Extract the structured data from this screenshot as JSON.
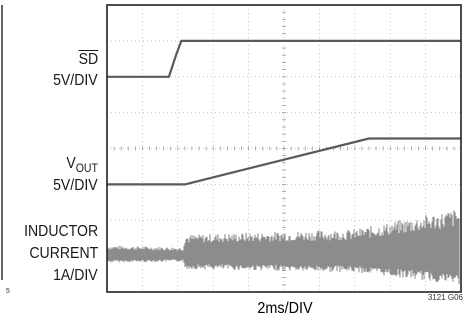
{
  "chart_data": {
    "type": "line",
    "title": "",
    "xlabel": "2ms/DIV",
    "figure_id": "3121 G06",
    "x_unit": "ms",
    "x_divisions": 10,
    "xlim": [
      0,
      20
    ],
    "y_divisions": 8,
    "grid": true,
    "series": [
      {
        "name": "SD",
        "overline": true,
        "scale": "5V/DIV",
        "points": [
          [
            0,
            0
          ],
          [
            3.5,
            0
          ],
          [
            3.9,
            3.0
          ],
          [
            4.2,
            5.0
          ],
          [
            20,
            5.0
          ]
        ]
      },
      {
        "name": "VOUT",
        "name_main": "V",
        "name_sub": "OUT",
        "scale": "5V/DIV",
        "points": [
          [
            0,
            0
          ],
          [
            4.4,
            0
          ],
          [
            14.8,
            6.4
          ],
          [
            20,
            6.4
          ]
        ]
      },
      {
        "name": "INDUCTOR CURRENT",
        "name_lines": [
          "INDUCTOR",
          "CURRENT"
        ],
        "scale": "1A/DIV",
        "style": "noise-band",
        "points": [
          [
            0,
            0.3
          ],
          [
            4.3,
            0.25
          ],
          [
            4.4,
            0.6
          ],
          [
            14,
            0.75
          ],
          [
            20,
            1.35
          ]
        ]
      }
    ]
  },
  "left_edge_fragment": "5"
}
